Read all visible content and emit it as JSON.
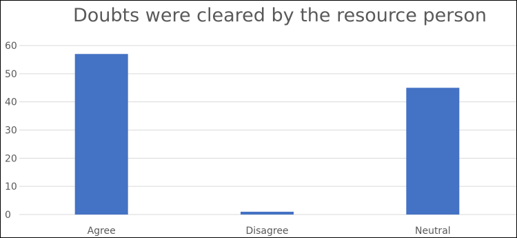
{
  "chart_data": {
    "type": "bar",
    "title": "Doubts were cleared by the resource person",
    "categories": [
      "Agree",
      "Disagree",
      "Neutral"
    ],
    "values": [
      57,
      1,
      45
    ],
    "xlabel": "",
    "ylabel": "",
    "ylim": [
      0,
      60
    ],
    "yticks": [
      0,
      10,
      20,
      30,
      40,
      50,
      60
    ],
    "grid": true,
    "legend": "none",
    "bar_color": "#4472C4",
    "grid_color": "#D9D9D9"
  }
}
